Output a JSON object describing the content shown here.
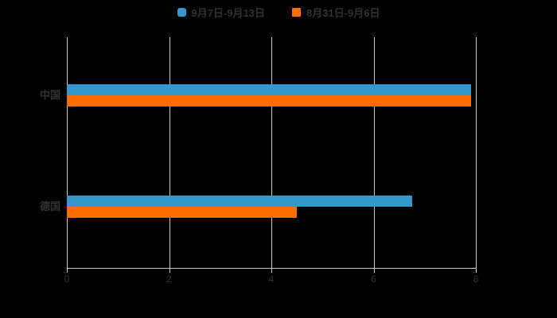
{
  "page": {
    "background": "#000000",
    "text_color": "#333333",
    "grid_color": "#cccccc"
  },
  "legend": {
    "items": [
      {
        "label": "9月7日-9月13日",
        "color": "#3498CE",
        "marker": "rounded-square"
      },
      {
        "label": "8月31日-9月6日",
        "color": "#FF6D00",
        "marker": "square"
      }
    ]
  },
  "chart_data": {
    "type": "bar",
    "orientation": "horizontal",
    "title": "",
    "xlabel": "",
    "ylabel": "",
    "categories": [
      "中国",
      "德国"
    ],
    "series": [
      {
        "name": "9月7日-9月13日",
        "color": "#3498CE",
        "values": [
          7.9,
          6.75
        ]
      },
      {
        "name": "8月31日-9月6日",
        "color": "#FF6D00",
        "values": [
          7.9,
          4.5
        ]
      }
    ],
    "xlim": [
      0,
      8
    ],
    "x_ticks": [
      "0",
      "2",
      "4",
      "6",
      "8"
    ],
    "grid": "vertical-on",
    "legend_position": "top-center"
  }
}
